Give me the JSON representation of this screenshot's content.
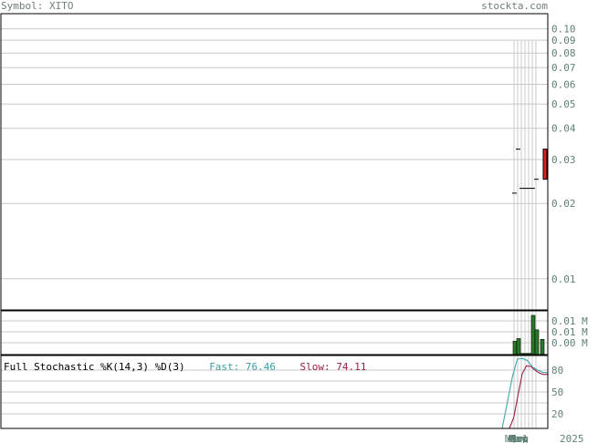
{
  "header": {
    "symbol": "Symbol: XITO",
    "brand": "stockta.com"
  },
  "colors": {
    "grid": "#c8c8c8",
    "axis": "#000000",
    "label": "#5f7f78",
    "up": "#e02020",
    "volume": "#2a7a2a",
    "fast": "#40a8a8",
    "slow": "#9a1f4a"
  },
  "chart_data": [
    {
      "type": "candlestick",
      "title": "",
      "yscale": "log",
      "ylim": [
        0.0075,
        0.115
      ],
      "y_tick_labels": [
        "0.10",
        "0.09",
        "0.08",
        "0.07",
        "0.06",
        "0.05",
        "0.04",
        "0.03",
        "0.02",
        "0.01"
      ],
      "y_tick_values": [
        0.1,
        0.09,
        0.08,
        0.07,
        0.06,
        0.05,
        0.04,
        0.03,
        0.02,
        0.01
      ],
      "candles": [
        {
          "open": 0.022,
          "high": 0.022,
          "low": 0.022,
          "close": 0.022
        },
        {
          "open": 0.033,
          "high": 0.033,
          "low": 0.033,
          "close": 0.033
        },
        {
          "open": 0.023,
          "high": 0.023,
          "low": 0.023,
          "close": 0.023
        },
        {
          "open": 0.023,
          "high": 0.023,
          "low": 0.023,
          "close": 0.023
        },
        {
          "open": 0.023,
          "high": 0.023,
          "low": 0.023,
          "close": 0.023
        },
        {
          "open": 0.023,
          "high": 0.023,
          "low": 0.023,
          "close": 0.023
        },
        {
          "open": 0.025,
          "high": 0.025,
          "low": 0.025,
          "close": 0.025
        },
        {
          "open": 0.025,
          "high": 0.033,
          "low": 0.025,
          "close": 0.033
        }
      ]
    },
    {
      "type": "bar",
      "title": "",
      "y_tick_labels": [
        "0.01 M",
        "0.01 M",
        "0.00 M"
      ],
      "values": [
        0.0035,
        0.0042,
        0.0003,
        0.0003,
        0.0003,
        0.0103,
        0.0065,
        0.004
      ]
    },
    {
      "type": "line",
      "title": "Full Stochastic %K(14,3) %D(3)",
      "ylim": [
        0,
        100
      ],
      "y_tick_labels": [
        "80",
        "50",
        "20"
      ],
      "y_tick_values": [
        80,
        50,
        20
      ],
      "series": [
        {
          "name": "Fast",
          "last_label": "Fast: 76.46",
          "values": [
            0,
            35,
            70,
            95,
            96,
            93,
            84,
            80,
            77,
            76.46
          ]
        },
        {
          "name": "Slow",
          "last_label": "Slow: 74.11",
          "values": [
            0,
            15,
            45,
            75,
            86,
            85,
            80,
            76,
            74,
            74.11
          ]
        }
      ],
      "x_tick_labels": [
        "Mar",
        "Apr",
        "May",
        "Jun",
        "Jul",
        "Aug",
        "Sep",
        "Oct",
        "Nov",
        "Dec",
        "2025"
      ]
    }
  ]
}
